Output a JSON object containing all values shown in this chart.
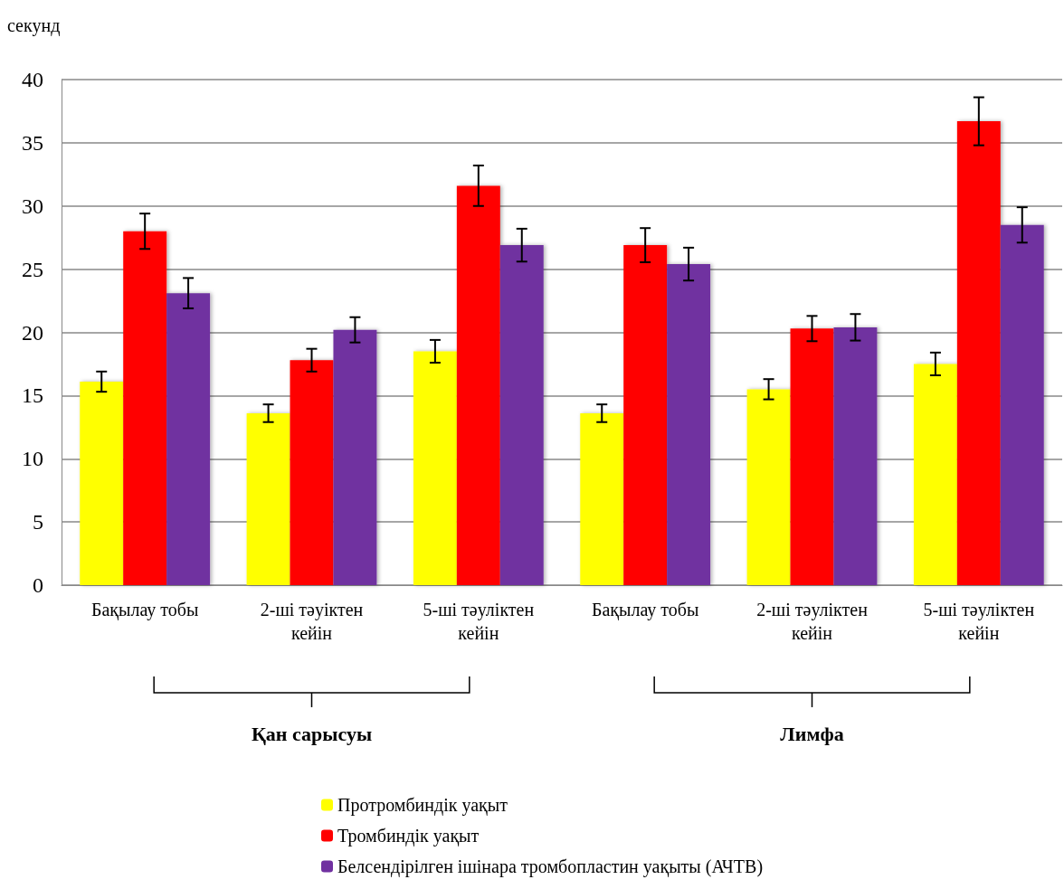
{
  "chart_data": {
    "type": "bar",
    "ylabel": "секунд",
    "categories": [
      "Бақылау тобы",
      "2-ші тәуіктен кейін",
      "5-ші тәуліктен кейін",
      "Бақылау тобы",
      "2-ші тәуліктен кейін",
      "5-ші тәуліктен кейін"
    ],
    "series": [
      {
        "name": "Протромбиндік уақыт",
        "color": "#ffff00",
        "values": [
          16.1,
          13.6,
          18.5,
          13.6,
          15.5,
          17.5
        ],
        "errors": [
          0.8,
          0.7,
          0.9,
          0.7,
          0.8,
          0.9
        ]
      },
      {
        "name": "Тромбиндік уақыт",
        "color": "#ff0000",
        "values": [
          28.0,
          17.8,
          31.6,
          26.9,
          20.3,
          36.7
        ],
        "errors": [
          1.4,
          0.9,
          1.6,
          1.35,
          1.0,
          1.9
        ]
      },
      {
        "name": "Белсендірілген ішінара тромбопластин уақыты (АЧТВ)",
        "color": "#7030a0",
        "values": [
          23.1,
          20.2,
          26.9,
          25.4,
          20.4,
          28.5
        ],
        "errors": [
          1.2,
          1.0,
          1.3,
          1.3,
          1.05,
          1.4
        ]
      }
    ],
    "annotations": [
      "Қан сарысуы",
      "Лимфа"
    ],
    "ylim": [
      0,
      40
    ],
    "yticks": [
      0,
      5,
      10,
      15,
      20,
      25,
      30,
      35,
      40
    ],
    "grid": "y",
    "legend": "bottom"
  }
}
